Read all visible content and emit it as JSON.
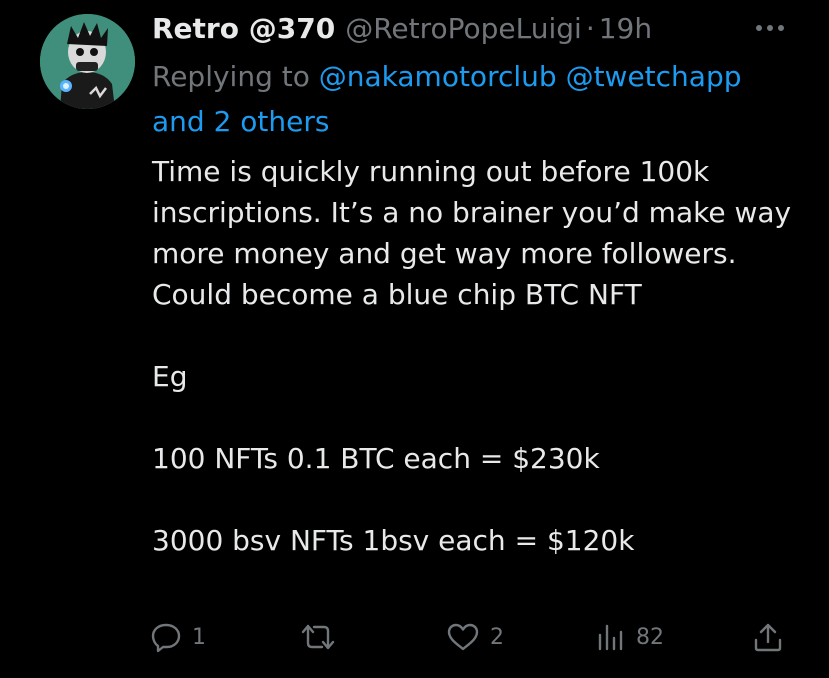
{
  "tweet": {
    "display_name": "Retro @370",
    "handle": "@RetroPopeLuigi",
    "separator": "·",
    "time": "19h",
    "replying_prefix": "Replying to ",
    "mention_1": "@nakamotorclub",
    "mention_2": "@twetchapp",
    "mention_others": "and 2 others",
    "body": "Time is quickly running out before 100k inscriptions. It’s a no brainer you’d make way more money and get way more followers. Could become a blue chip BTC NFT\n\nEg\n\n100 NFTs 0.1 BTC each = $230k\n\n3000 bsv NFTs 1bsv each = $120k"
  },
  "actions": {
    "reply_count": "1",
    "retweet_count": "",
    "like_count": "2",
    "views_count": "82"
  },
  "icons": {
    "more": "more-horizontal-icon",
    "reply": "reply-bubble-icon",
    "retweet": "retweet-icon",
    "like": "heart-icon",
    "views": "bar-chart-icon",
    "share": "share-icon"
  },
  "colors": {
    "background": "#000000",
    "text": "#e7e9ea",
    "muted": "#71767b",
    "link": "#1d9bf0",
    "avatar_bg": "#3f8f7c"
  }
}
